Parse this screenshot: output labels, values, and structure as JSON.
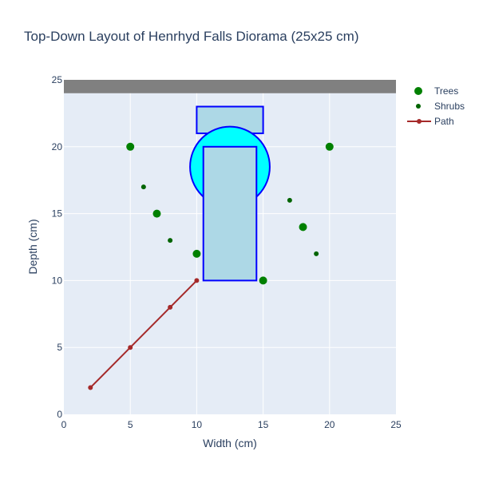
{
  "chart_data": {
    "type": "scatter",
    "title": "Top-Down Layout of Henrhyd Falls Diorama (25x25 cm)",
    "xlabel": "Width (cm)",
    "ylabel": "Depth (cm)",
    "xlim": [
      0,
      25
    ],
    "ylim": [
      0,
      25
    ],
    "x_ticks": [
      0,
      5,
      10,
      15,
      20,
      25
    ],
    "y_ticks": [
      0,
      5,
      10,
      15,
      20,
      25
    ],
    "grid": true,
    "legend_position": "right",
    "series": [
      {
        "name": "Trees",
        "mode": "markers",
        "color": "#008000",
        "marker_size": 10,
        "x": [
          5,
          7,
          10,
          15,
          18,
          20
        ],
        "y": [
          20,
          15,
          12,
          10,
          14,
          20
        ]
      },
      {
        "name": "Shrubs",
        "mode": "markers",
        "color": "#006400",
        "marker_size": 6,
        "x": [
          6,
          8,
          17,
          19
        ],
        "y": [
          17,
          13,
          16,
          12
        ]
      },
      {
        "name": "Path",
        "mode": "lines+markers",
        "color": "#a52a2a",
        "marker_size": 6,
        "x": [
          2,
          5,
          8,
          10
        ],
        "y": [
          2,
          5,
          8,
          10
        ]
      }
    ],
    "shapes": [
      {
        "type": "rect",
        "x0": 0,
        "x1": 25,
        "y0": 24,
        "y1": 25,
        "fill": "#808080",
        "line": "none"
      },
      {
        "type": "rect",
        "x0": 10,
        "x1": 15,
        "y0": 21,
        "y1": 23,
        "fill": "#add8e6",
        "line": "#0000ff"
      },
      {
        "type": "circle",
        "x0": 9.5,
        "x1": 15.5,
        "y0": 15.5,
        "y1": 21.5,
        "fill": "#00ffff",
        "line": "#0000ff"
      },
      {
        "type": "rect",
        "x0": 10.5,
        "x1": 14.5,
        "y0": 10,
        "y1": 20,
        "fill": "#add8e6",
        "line": "#0000ff"
      }
    ]
  },
  "legend": {
    "items": [
      {
        "label": "Trees"
      },
      {
        "label": "Shrubs"
      },
      {
        "label": "Path"
      }
    ]
  }
}
